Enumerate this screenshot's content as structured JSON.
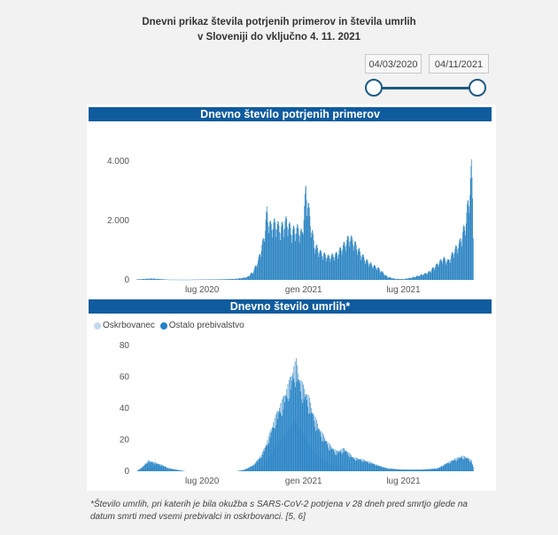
{
  "title": {
    "line1": "Dnevni prikaz števila potrjenih primerov in števila umrlih",
    "line2": "v Sloveniji do vključno 4. 11. 2021"
  },
  "date_range": {
    "start": "04/03/2020",
    "end": "04/11/2021"
  },
  "colors": {
    "header": "#0e5b9e",
    "cases": "#1f7dbf",
    "oskrbovanec": "#c4d8ef",
    "ostalo": "#2280c4",
    "slider": "#1c5a82"
  },
  "footnote": "*Število umrlih, pri katerih je bila okužba s SARS-CoV-2 potrjena v 28 dneh pred smrtjo glede na datum smrti med vsemi prebivalci in oskrbovanci. [5, 6]",
  "chart_data": [
    {
      "type": "bar",
      "title": "Dnevno število potrjenih primerov",
      "x_range": [
        "2020-03-04",
        "2021-11-04"
      ],
      "x_ticks": [
        "lug 2020",
        "gen 2021",
        "lug 2021"
      ],
      "y_ticks": [
        "0",
        "2.000",
        "4.000"
      ],
      "ylim": [
        0,
        4600
      ],
      "grid": false,
      "series": [
        {
          "x": [
            "2020-03-04",
            "2020-04-01",
            "2020-05-01",
            "2020-06-01",
            "2020-07-01",
            "2020-08-01",
            "2020-09-01",
            "2020-09-20",
            "2020-10-01",
            "2020-10-10",
            "2020-10-20",
            "2020-10-26",
            "2020-11-01",
            "2020-11-10",
            "2020-11-20",
            "2020-12-01",
            "2020-12-10",
            "2020-12-20",
            "2020-12-29",
            "2021-01-05",
            "2021-01-12",
            "2021-01-20",
            "2021-02-01",
            "2021-02-15",
            "2021-03-01",
            "2021-03-15",
            "2021-03-25",
            "2021-04-05",
            "2021-04-15",
            "2021-04-25",
            "2021-05-05",
            "2021-05-15",
            "2021-06-01",
            "2021-06-15",
            "2021-07-01",
            "2021-07-15",
            "2021-08-01",
            "2021-08-15",
            "2021-09-01",
            "2021-09-10",
            "2021-09-20",
            "2021-10-01",
            "2021-10-10",
            "2021-10-20",
            "2021-10-27",
            "2021-11-01",
            "2021-11-03",
            "2021-11-04"
          ],
          "values": [
            20,
            50,
            10,
            5,
            15,
            20,
            40,
            100,
            300,
            700,
            1500,
            2500,
            2000,
            2100,
            1900,
            2200,
            1800,
            1900,
            1700,
            3400,
            2300,
            1300,
            1000,
            850,
            950,
            1300,
            1600,
            1300,
            950,
            700,
            550,
            450,
            120,
            40,
            30,
            80,
            180,
            280,
            600,
            800,
            700,
            1100,
            1350,
            2000,
            3000,
            4100,
            3300,
            2000
          ]
        }
      ]
    },
    {
      "type": "area",
      "title": "Dnevno število umrlih*",
      "x_range": [
        "2020-03-04",
        "2021-11-04"
      ],
      "x_ticks": [
        "lug 2020",
        "gen 2021",
        "lug 2021"
      ],
      "y_ticks": [
        "0",
        "20",
        "40",
        "60",
        "80"
      ],
      "ylim": [
        0,
        80
      ],
      "grid": false,
      "legend": "top-left",
      "series": [
        {
          "name": "Oskrbovanec",
          "x": [
            "2020-03-04",
            "2020-03-25",
            "2020-04-10",
            "2020-05-01",
            "2020-09-15",
            "2020-10-05",
            "2020-10-20",
            "2020-11-01",
            "2020-11-15",
            "2020-12-01",
            "2020-12-15",
            "2020-12-25",
            "2021-01-05",
            "2021-01-20",
            "2021-02-10",
            "2021-03-01",
            "2021-04-01",
            "2021-11-04"
          ],
          "values": [
            0,
            2,
            3,
            0,
            0,
            1,
            4,
            10,
            18,
            24,
            32,
            28,
            20,
            12,
            6,
            3,
            1,
            1
          ]
        },
        {
          "name": "Ostalo prebivalstvo",
          "x": [
            "2020-03-04",
            "2020-03-15",
            "2020-03-25",
            "2020-04-05",
            "2020-04-20",
            "2020-05-01",
            "2020-06-01",
            "2020-09-01",
            "2020-09-15",
            "2020-10-01",
            "2020-10-15",
            "2020-10-25",
            "2020-11-05",
            "2020-11-15",
            "2020-11-25",
            "2020-12-05",
            "2020-12-12",
            "2020-12-18",
            "2020-12-25",
            "2021-01-02",
            "2021-01-10",
            "2021-01-20",
            "2021-02-01",
            "2021-02-15",
            "2021-03-01",
            "2021-03-15",
            "2021-04-01",
            "2021-04-15",
            "2021-05-01",
            "2021-05-15",
            "2021-06-01",
            "2021-07-01",
            "2021-08-01",
            "2021-09-01",
            "2021-09-15",
            "2021-10-01",
            "2021-10-15",
            "2021-10-25",
            "2021-11-01",
            "2021-11-04"
          ],
          "values": [
            0,
            3,
            7,
            6,
            4,
            2,
            0,
            0,
            1,
            4,
            10,
            18,
            30,
            40,
            48,
            58,
            66,
            72,
            60,
            54,
            48,
            36,
            26,
            18,
            13,
            15,
            9,
            8,
            6,
            4,
            2,
            1,
            1,
            2,
            5,
            8,
            10,
            9,
            7,
            3
          ]
        }
      ]
    }
  ]
}
